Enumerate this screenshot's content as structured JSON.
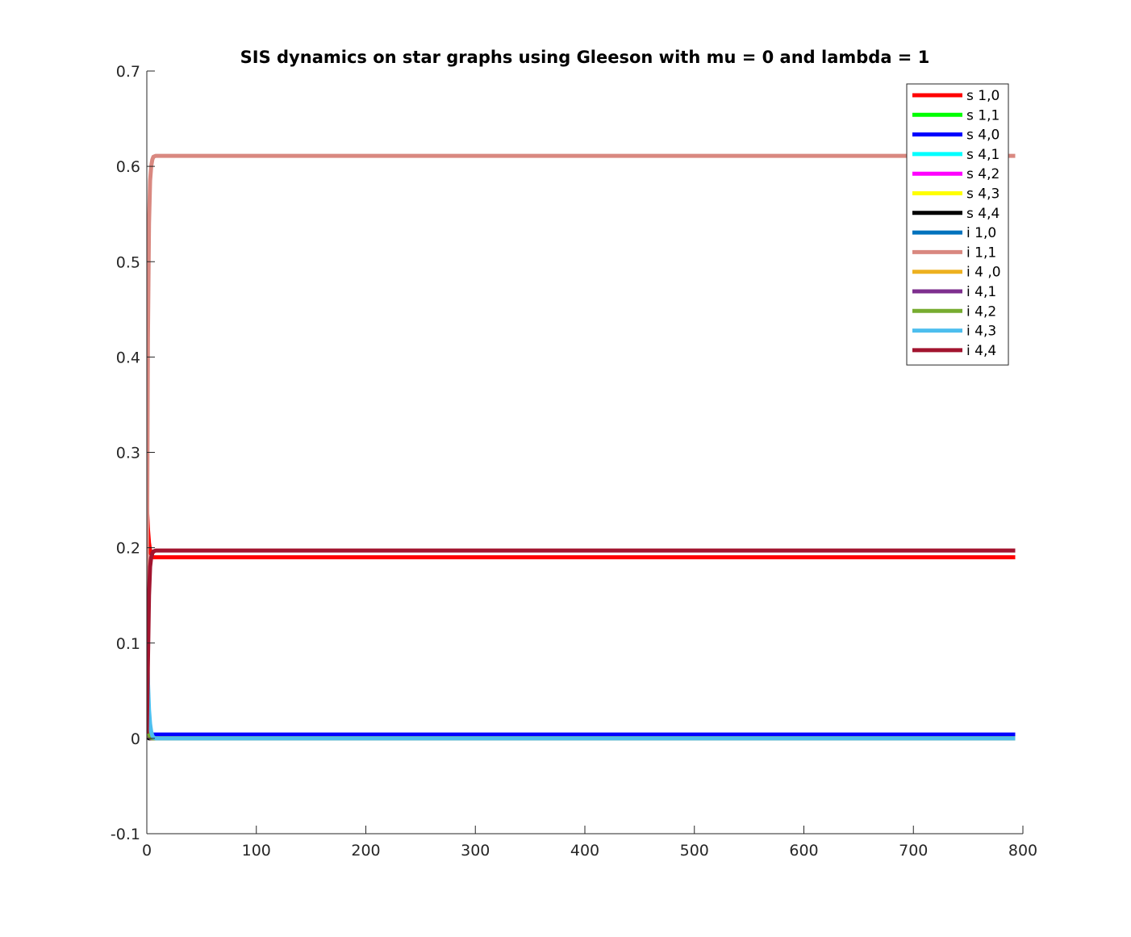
{
  "chart_data": {
    "type": "line",
    "title": "SIS dynamics on star graphs using Gleeson with mu = 0 and lambda = 1",
    "xlabel": "",
    "ylabel": "",
    "xlim": [
      0,
      800
    ],
    "ylim": [
      -0.1,
      0.7
    ],
    "xticks": [
      0,
      100,
      200,
      300,
      400,
      500,
      600,
      700,
      800
    ],
    "yticks": [
      -0.1,
      0,
      0.1,
      0.2,
      0.3,
      0.4,
      0.5,
      0.6,
      0.7
    ],
    "xtick_labels": [
      "0",
      "100",
      "200",
      "300",
      "400",
      "500",
      "600",
      "700",
      "800"
    ],
    "ytick_labels": [
      "-0.1",
      "0",
      "0.1",
      "0.2",
      "0.3",
      "0.4",
      "0.5",
      "0.6",
      "0.7"
    ],
    "grid": false,
    "legend_position": "top-right",
    "x": [
      0,
      1,
      2,
      3,
      4,
      5,
      6,
      8,
      10,
      20,
      50,
      100,
      200,
      300,
      400,
      500,
      600,
      700,
      793
    ],
    "series": [
      {
        "name": "s 1,0",
        "color": "#ff0000",
        "values": [
          0.245,
          0.22,
          0.205,
          0.197,
          0.193,
          0.191,
          0.19,
          0.19,
          0.19,
          0.19,
          0.19,
          0.19,
          0.19,
          0.19,
          0.19,
          0.19,
          0.19,
          0.19,
          0.19
        ]
      },
      {
        "name": "s 1,1",
        "color": "#00ff00",
        "values": [
          0.005,
          0.004,
          0.003,
          0.002,
          0.0015,
          0.001,
          0.001,
          0.001,
          0.001,
          0.001,
          0.001,
          0.001,
          0.001,
          0.001,
          0.001,
          0.001,
          0.001,
          0.001,
          0.001
        ]
      },
      {
        "name": "s 4,0",
        "color": "#0000ff",
        "values": [
          0.005,
          0.005,
          0.004,
          0.004,
          0.004,
          0.004,
          0.004,
          0.004,
          0.004,
          0.004,
          0.004,
          0.004,
          0.004,
          0.004,
          0.004,
          0.004,
          0.004,
          0.004,
          0.004
        ]
      },
      {
        "name": "s 4,1",
        "color": "#00ffff",
        "values": [
          0.02,
          0.01,
          0.005,
          0.002,
          0.001,
          0.0005,
          0,
          0,
          0,
          0,
          0,
          0,
          0,
          0,
          0,
          0,
          0,
          0,
          0
        ]
      },
      {
        "name": "s 4,2",
        "color": "#ff00ff",
        "values": [
          0.01,
          0.005,
          0.002,
          0.001,
          0,
          0,
          0,
          0,
          0,
          0,
          0,
          0,
          0,
          0,
          0,
          0,
          0,
          0,
          0
        ]
      },
      {
        "name": "s 4,3",
        "color": "#ffff00",
        "values": [
          0.005,
          0.002,
          0.001,
          0,
          0,
          0,
          0,
          0,
          0,
          0,
          0,
          0,
          0,
          0,
          0,
          0,
          0,
          0,
          0
        ]
      },
      {
        "name": "s 4,4",
        "color": "#000000",
        "values": [
          0.002,
          0.001,
          0,
          0,
          0,
          0,
          0,
          0,
          0,
          0,
          0,
          0,
          0,
          0,
          0,
          0,
          0,
          0,
          0
        ]
      },
      {
        "name": "i 1,0",
        "color": "#0072bd",
        "values": [
          0.145,
          0.05,
          0.015,
          0.005,
          0.002,
          0.001,
          0,
          0,
          0,
          0,
          0,
          0,
          0,
          0,
          0,
          0,
          0,
          0,
          0
        ]
      },
      {
        "name": "i 1,1",
        "color": "#d98880",
        "values": [
          0.145,
          0.42,
          0.54,
          0.585,
          0.6,
          0.607,
          0.61,
          0.611,
          0.611,
          0.611,
          0.611,
          0.611,
          0.611,
          0.611,
          0.611,
          0.611,
          0.611,
          0.611,
          0.611
        ]
      },
      {
        "name": "i 4 ,0",
        "color": "#edb120",
        "values": [
          0.01,
          0.005,
          0.002,
          0.001,
          0,
          0,
          0,
          0,
          0,
          0,
          0,
          0,
          0,
          0,
          0,
          0,
          0,
          0,
          0
        ]
      },
      {
        "name": "i 4,1",
        "color": "#7e2f8e",
        "values": [
          0.01,
          0.006,
          0.003,
          0.001,
          0,
          0,
          0,
          0,
          0,
          0,
          0,
          0,
          0,
          0,
          0,
          0,
          0,
          0,
          0
        ]
      },
      {
        "name": "i 4,2",
        "color": "#77ac30",
        "values": [
          0.01,
          0.008,
          0.004,
          0.002,
          0.001,
          0,
          0,
          0,
          0,
          0,
          0,
          0,
          0,
          0,
          0,
          0,
          0,
          0,
          0
        ]
      },
      {
        "name": "i 4,3",
        "color": "#4dbeee",
        "values": [
          0.1,
          0.06,
          0.03,
          0.015,
          0.007,
          0.003,
          0.001,
          0,
          0,
          0,
          0,
          0,
          0,
          0,
          0,
          0,
          0,
          0,
          0
        ]
      },
      {
        "name": "i 4,4",
        "color": "#a2142f",
        "values": [
          0.005,
          0.08,
          0.15,
          0.18,
          0.19,
          0.194,
          0.196,
          0.197,
          0.197,
          0.197,
          0.197,
          0.197,
          0.197,
          0.197,
          0.197,
          0.197,
          0.197,
          0.197,
          0.197
        ]
      }
    ]
  }
}
